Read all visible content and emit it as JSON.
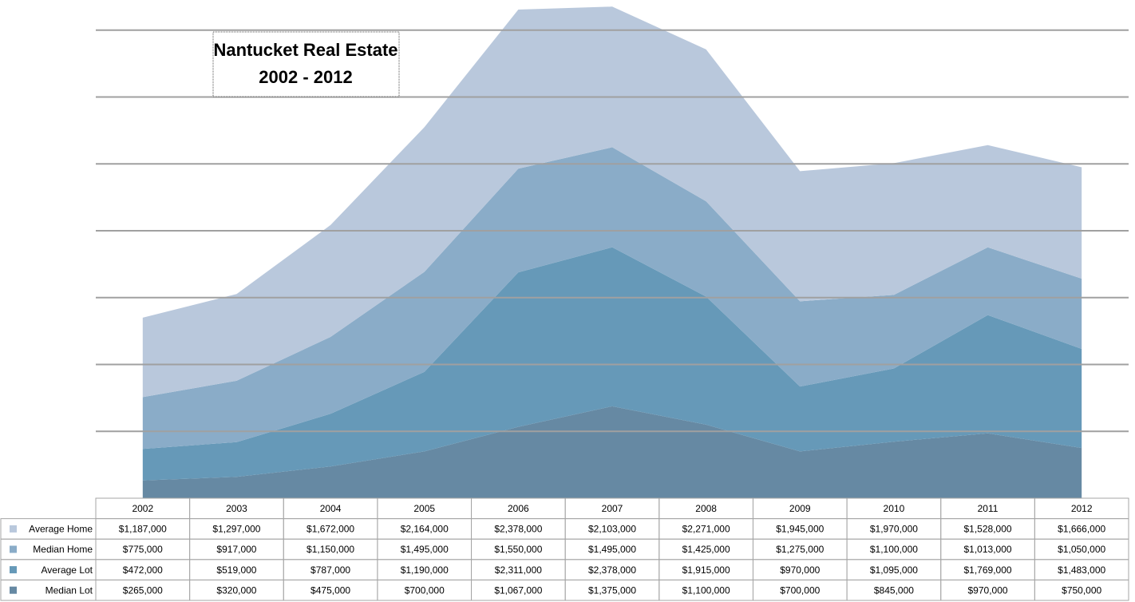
{
  "chart_data": {
    "type": "stacked-area",
    "title": "Nantucket Real Estate",
    "subtitle": "2002 - 2012",
    "categories": [
      "2002",
      "2003",
      "2004",
      "2005",
      "2006",
      "2007",
      "2008",
      "2009",
      "2010",
      "2011",
      "2012"
    ],
    "series": [
      {
        "name": "Average Home",
        "color": "#b9c8dc",
        "values": [
          1187000,
          1297000,
          1672000,
          2164000,
          2378000,
          2103000,
          2271000,
          1945000,
          1970000,
          1528000,
          1666000
        ],
        "value_labels": [
          "$1,187,000",
          "$1,297,000",
          "$1,672,000",
          "$2,164,000",
          "$2,378,000",
          "$2,103,000",
          "$2,271,000",
          "$1,945,000",
          "$1,970,000",
          "$1,528,000",
          "$1,666,000"
        ]
      },
      {
        "name": "Median Home",
        "color": "#8aacc8",
        "values": [
          775000,
          917000,
          1150000,
          1495000,
          1550000,
          1495000,
          1425000,
          1275000,
          1100000,
          1013000,
          1050000
        ],
        "value_labels": [
          "$775,000",
          "$917,000",
          "$1,150,000",
          "$1,495,000",
          "$1,550,000",
          "$1,495,000",
          "$1,425,000",
          "$1,275,000",
          "$1,100,000",
          "$1,013,000",
          "$1,050,000"
        ]
      },
      {
        "name": "Average Lot",
        "color": "#6699b8",
        "values": [
          472000,
          519000,
          787000,
          1190000,
          2311000,
          2378000,
          1915000,
          970000,
          1095000,
          1769000,
          1483000
        ],
        "value_labels": [
          "$472,000",
          "$519,000",
          "$787,000",
          "$1,190,000",
          "$2,311,000",
          "$2,378,000",
          "$1,915,000",
          "$970,000",
          "$1,095,000",
          "$1,769,000",
          "$1,483,000"
        ]
      },
      {
        "name": "Median Lot",
        "color": "#6689a3",
        "values": [
          265000,
          320000,
          475000,
          700000,
          1067000,
          1375000,
          1100000,
          700000,
          845000,
          970000,
          750000
        ],
        "value_labels": [
          "$265,000",
          "$320,000",
          "$475,000",
          "$700,000",
          "$1,067,000",
          "$1,375,000",
          "$1,100,000",
          "$700,000",
          "$845,000",
          "$970,000",
          "$750,000"
        ]
      }
    ],
    "ylim": [
      0,
      7450000
    ],
    "yticks": [
      0,
      1000000,
      2000000,
      3000000,
      4000000,
      5000000,
      6000000,
      7000000
    ],
    "grid": true
  }
}
